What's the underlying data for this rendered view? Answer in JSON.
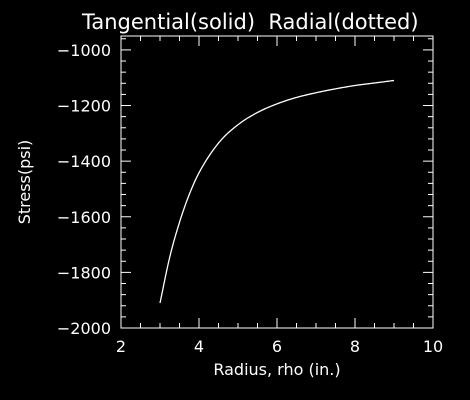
{
  "chart_data": {
    "type": "line",
    "title": "Tangential(solid)  Radial(dotted)",
    "xlabel": "Radius, rho (in.)",
    "ylabel": "Stress(psi)",
    "xlim": [
      2,
      10
    ],
    "ylim": [
      -2000,
      -950
    ],
    "x_ticks": [
      2,
      4,
      6,
      8,
      10
    ],
    "y_ticks": [
      -2000,
      -1800,
      -1600,
      -1400,
      -1200,
      -1000
    ],
    "x_tick_labels": [
      "2",
      "4",
      "6",
      "8",
      "10"
    ],
    "y_tick_labels": [
      "−2000",
      "−1800",
      "−1600",
      "−1400",
      "−1200",
      "−1000"
    ],
    "grid": false,
    "background_color": "#000000",
    "foreground_color": "#ffffff",
    "series": [
      {
        "style": "solid",
        "x": [
          3.0,
          3.25,
          3.5,
          3.75,
          4.0,
          4.5,
          5.0,
          5.5,
          6.0,
          6.5,
          7.0,
          7.5,
          8.0,
          8.5,
          9.0
        ],
        "y": [
          -1910,
          -1745,
          -1620,
          -1520,
          -1442,
          -1335,
          -1269,
          -1225,
          -1194,
          -1171,
          -1154,
          -1140,
          -1128,
          -1119,
          -1110
        ]
      }
    ]
  }
}
